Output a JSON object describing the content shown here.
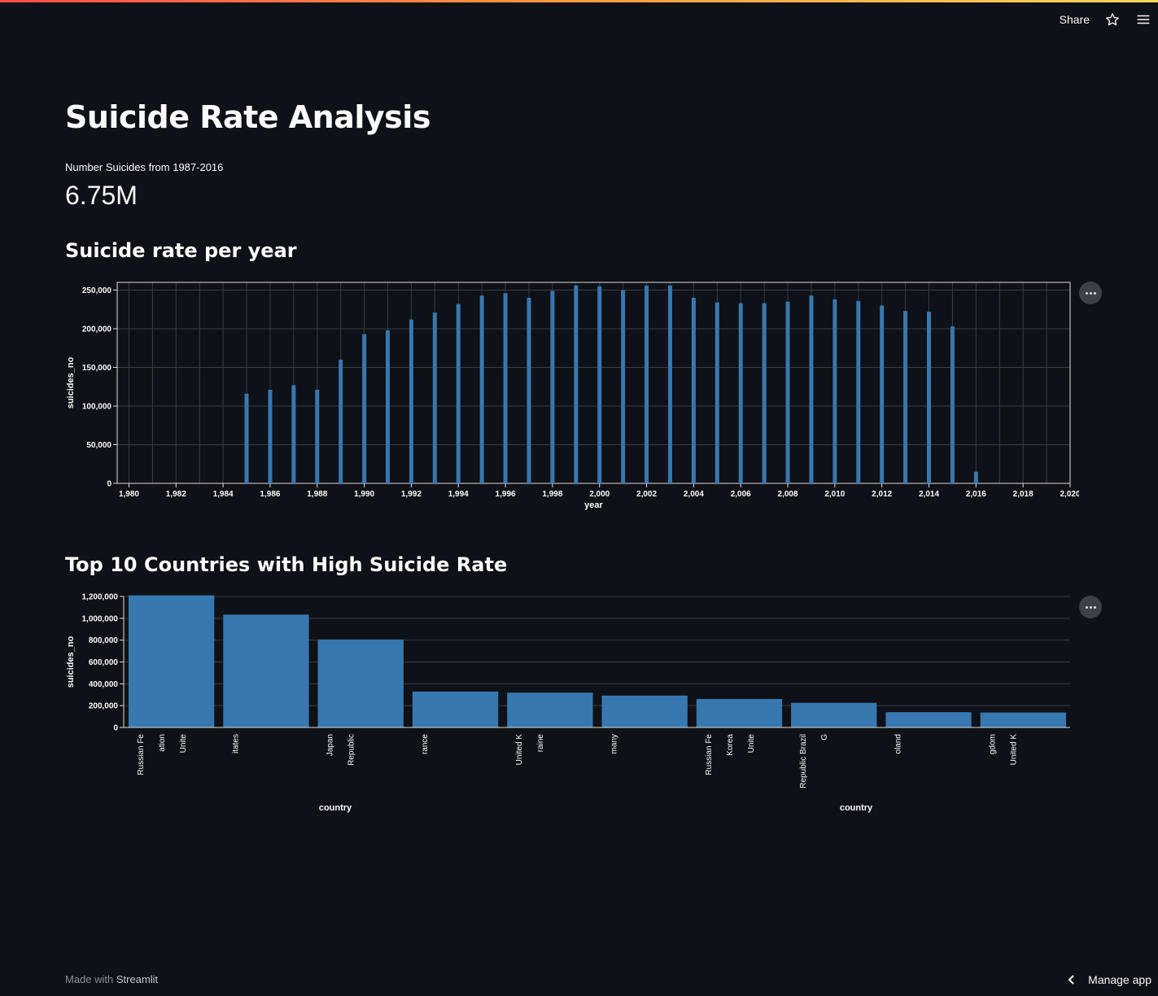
{
  "header": {
    "share_label": "Share",
    "star_icon": "star-icon",
    "menu_icon": "hamburger-menu-icon"
  },
  "page": {
    "title": "Suicide Rate Analysis",
    "metric_label": "Number Suicides from 1987-2016",
    "metric_value": "6.75M"
  },
  "charts": {
    "year_heading": "Suicide rate per year",
    "country_heading": "Top 10 Countries with High Suicide Rate"
  },
  "colors": {
    "bar": "#3778b0",
    "background": "#0e1117",
    "grid": "#3a3d44"
  },
  "chart_data": [
    {
      "type": "bar",
      "xlabel": "year",
      "ylabel": "suicides_no",
      "xlim": [
        1979.5,
        2020
      ],
      "ylim": [
        0,
        260000
      ],
      "x_ticks": [
        "1,980",
        "1,982",
        "1,984",
        "1,986",
        "1,988",
        "1,990",
        "1,992",
        "1,994",
        "1,996",
        "1,998",
        "2,000",
        "2,002",
        "2,004",
        "2,006",
        "2,008",
        "2,010",
        "2,012",
        "2,014",
        "2,016",
        "2,018",
        "2,020"
      ],
      "y_ticks": [
        "0",
        "50,000",
        "100,000",
        "150,000",
        "200,000",
        "250,000"
      ],
      "x": [
        1985,
        1986,
        1987,
        1988,
        1989,
        1990,
        1991,
        1992,
        1993,
        1994,
        1995,
        1996,
        1997,
        1998,
        1999,
        2000,
        2001,
        2002,
        2003,
        2004,
        2005,
        2006,
        2007,
        2008,
        2009,
        2010,
        2011,
        2012,
        2013,
        2014,
        2015,
        2016
      ],
      "values": [
        116000,
        121000,
        127000,
        121000,
        160000,
        193000,
        198000,
        212000,
        221000,
        232000,
        243000,
        246000,
        240000,
        249000,
        256000,
        255000,
        250000,
        256000,
        256000,
        240000,
        234000,
        233000,
        233000,
        235000,
        243000,
        238000,
        236000,
        230000,
        223000,
        222000,
        203000,
        15000
      ],
      "grid": true
    },
    {
      "type": "bar",
      "xlabel": "country",
      "ylabel": "suicides_no",
      "ylim": [
        0,
        1200000
      ],
      "y_ticks": [
        "0",
        "200,000",
        "400,000",
        "600,000",
        "800,000",
        "1,000,000",
        "1,200,000"
      ],
      "categories": [
        "Russian Federation",
        "United States",
        "Japan",
        "France",
        "Ukraine",
        "Germany",
        "Republic of Korea",
        "Brazil",
        "Poland",
        "United Kingdom"
      ],
      "tick_fragments": [
        [
          "Russian Fe",
          "ation",
          "Unite"
        ],
        [
          "itates"
        ],
        [
          "Japan",
          "Republic"
        ],
        [
          "rance"
        ],
        [
          "United K",
          "raine"
        ],
        [
          "many"
        ],
        [
          "Russian Fe",
          "Korea",
          "Unite"
        ],
        [
          "Republic Brazil",
          "G"
        ],
        [
          "oland"
        ],
        [
          "gdom",
          "United K"
        ]
      ],
      "values": [
        1210000,
        1034000,
        806000,
        329000,
        319000,
        292000,
        261000,
        226000,
        140000,
        137000
      ],
      "grid": true
    }
  ],
  "footer": {
    "made_with": "Made with",
    "brand": "Streamlit",
    "manage_label": "Manage app"
  }
}
